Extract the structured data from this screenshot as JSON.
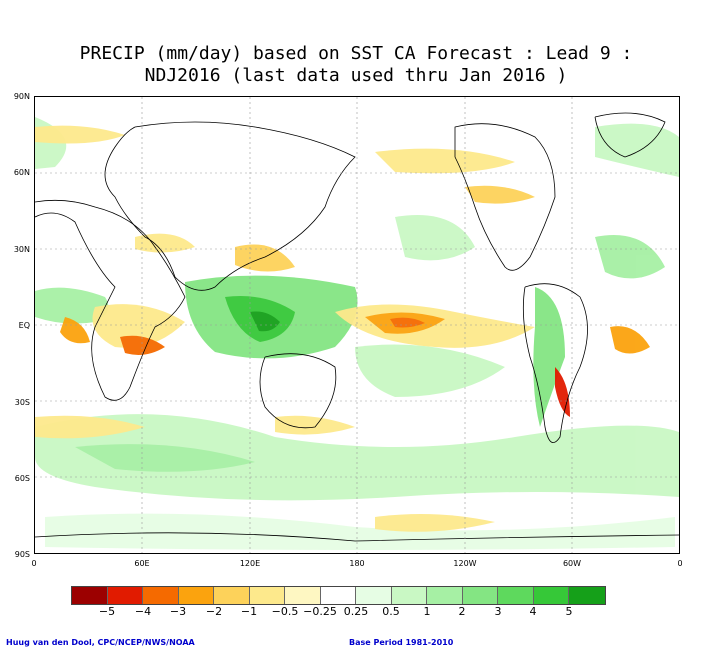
{
  "title": {
    "line1": "PRECIP (mm/day) based on SST CA Forecast : Lead 9 :",
    "line2": "NDJ2016 (last data used thru Jan 2016 )"
  },
  "axes": {
    "lat_labels": [
      "90N",
      "60N",
      "30N",
      "EQ",
      "30S",
      "60S",
      "90S"
    ],
    "lon_labels": [
      "0",
      "60E",
      "120E",
      "180",
      "120W",
      "60W",
      "0"
    ]
  },
  "legend": {
    "colors": [
      "#9c0000",
      "#e11b00",
      "#f56a00",
      "#fba30e",
      "#fdd25a",
      "#fde98c",
      "#fef7c2",
      "#ffffff",
      "#e6fde4",
      "#c9f8c4",
      "#a6f0a4",
      "#84e583",
      "#5ed95d",
      "#36c838",
      "#15a019"
    ],
    "labels": [
      "−5",
      "−4",
      "−3",
      "−2",
      "−1",
      "−0.5",
      "−0.25",
      "0.25",
      "0.5",
      "1",
      "2",
      "3",
      "4",
      "5"
    ]
  },
  "credits": {
    "left": "Huug van den Dool, CPC/NCEP/NWS/NOAA",
    "right": "Base Period 1981-2010"
  }
}
